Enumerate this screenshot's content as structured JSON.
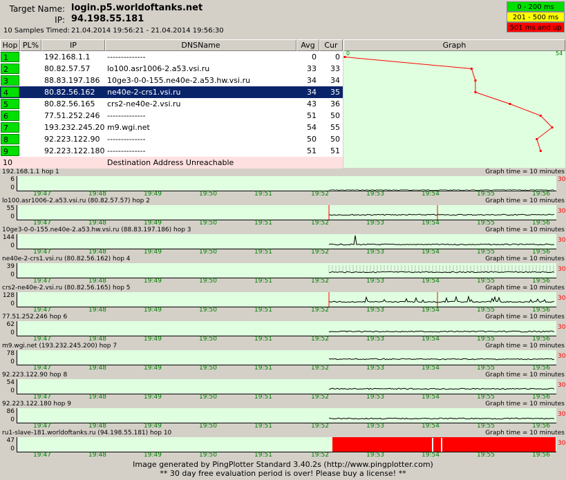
{
  "header": {
    "target_label": "Target Name:",
    "target_value": "login.p5.worldoftanks.net",
    "ip_label": "IP:",
    "ip_value": "94.198.55.181",
    "samples_label": "10 Samples Timed:",
    "samples_value": "21.04.2014 19:56:21 - 21.04.2014 19:56:30"
  },
  "legend": [
    {
      "label": "0 - 200 ms",
      "color": "#00e000"
    },
    {
      "label": "201 - 500 ms",
      "color": "#ffff00"
    },
    {
      "label": "501 ms and up",
      "color": "#ff0000"
    }
  ],
  "table": {
    "columns": [
      "Hop",
      "PL%",
      "IP",
      "DNSName",
      "Avg",
      "Cur",
      "Graph"
    ],
    "rows": [
      {
        "hop": "1",
        "pl": "",
        "ip": "192.168.1.1",
        "dns": "--------------",
        "avg": "0",
        "cur": "0"
      },
      {
        "hop": "2",
        "pl": "",
        "ip": "80.82.57.57",
        "dns": "lo100.asr1006-2.a53.vsi.ru",
        "avg": "33",
        "cur": "33"
      },
      {
        "hop": "3",
        "pl": "",
        "ip": "88.83.197.186",
        "dns": "10ge3-0-0-155.ne40e-2.a53.hw.vsi.ru",
        "avg": "34",
        "cur": "34"
      },
      {
        "hop": "4",
        "pl": "",
        "ip": "80.82.56.162",
        "dns": "ne40e-2-crs1.vsi.ru",
        "avg": "34",
        "cur": "35"
      },
      {
        "hop": "5",
        "pl": "",
        "ip": "80.82.56.165",
        "dns": "crs2-ne40e-2.vsi.ru",
        "avg": "43",
        "cur": "36"
      },
      {
        "hop": "6",
        "pl": "",
        "ip": "77.51.252.246",
        "dns": "--------------",
        "avg": "51",
        "cur": "50"
      },
      {
        "hop": "7",
        "pl": "",
        "ip": "193.232.245.200",
        "dns": "m9.wgi.net",
        "avg": "54",
        "cur": "55"
      },
      {
        "hop": "8",
        "pl": "",
        "ip": "92.223.122.90",
        "dns": "--------------",
        "avg": "50",
        "cur": "50"
      },
      {
        "hop": "9",
        "pl": "",
        "ip": "92.223.122.180",
        "dns": "--------------",
        "avg": "51",
        "cur": "51"
      }
    ],
    "unreachable": {
      "hop": "10",
      "message": "Destination Address Unreachable"
    },
    "graph_scale_min": "0",
    "graph_scale_max": "54"
  },
  "strips": {
    "graph_time_label": "Graph time = 10 minutes",
    "red_value": "30",
    "zero": "0",
    "time_labels": [
      "19:47",
      "19:48",
      "19:49",
      "19:50",
      "19:51",
      "19:52",
      "19:53",
      "19:54",
      "19:55",
      "19:56"
    ],
    "items": [
      {
        "title": "192.168.1.1 hop 1",
        "max": "6"
      },
      {
        "title": "lo100.asr1006-2.a53.vsi.ru (80.82.57.57) hop 2",
        "max": "55"
      },
      {
        "title": "10ge3-0-0-155.ne40e-2.a53.hw.vsi.ru (88.83.197.186) hop 3",
        "max": "144"
      },
      {
        "title": "ne40e-2-crs1.vsi.ru (80.82.56.162) hop 4",
        "max": "39"
      },
      {
        "title": "crs2-ne40e-2.vsi.ru (80.82.56.165) hop 5",
        "max": "128"
      },
      {
        "title": "77.51.252.246 hop 6",
        "max": "62"
      },
      {
        "title": "m9.wgi.net (193.232.245.200) hop 7",
        "max": "78"
      },
      {
        "title": "92.223.122.90 hop 8",
        "max": "54"
      },
      {
        "title": "92.223.122.180 hop 9",
        "max": "86"
      },
      {
        "title": "ru1-slave-181.worldoftanks.ru (94.198.55.181) hop 10",
        "max": "47"
      }
    ]
  },
  "footer": {
    "line1": "Image generated by PingPlotter Standard 3.40.2s (http://www.pingplotter.com)",
    "line2": "** 30 day free evaluation period is over!  Please buy a license! **"
  }
}
